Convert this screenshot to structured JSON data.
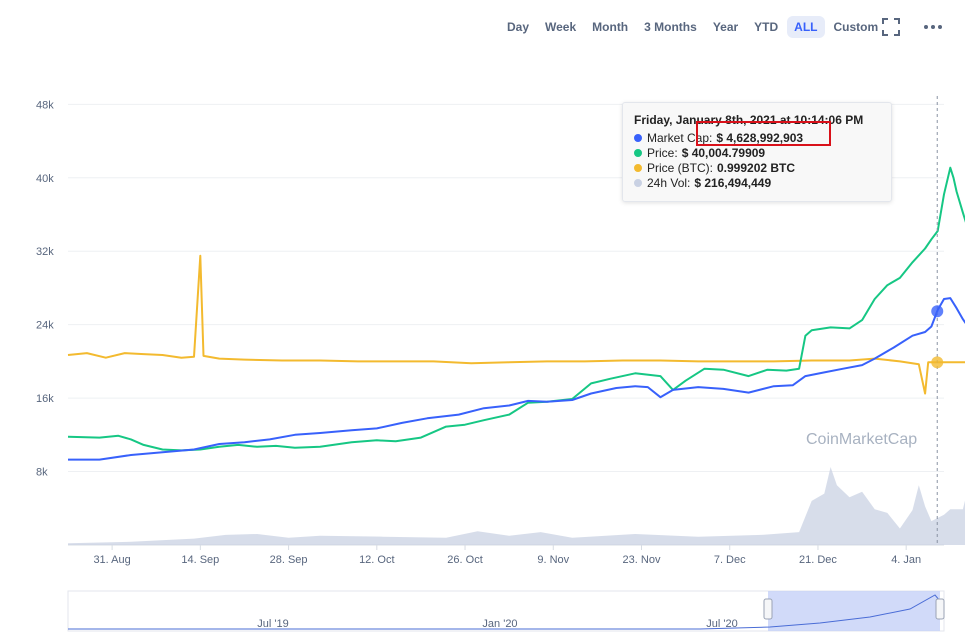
{
  "toolbar": {
    "ranges": [
      "Day",
      "Week",
      "Month",
      "3 Months",
      "Year",
      "YTD",
      "ALL",
      "Custom"
    ],
    "active": "ALL",
    "fullscreen_icon": "fullscreen-icon",
    "more_icon": "more-options-icon"
  },
  "tooltip": {
    "title": "Friday, January 8th, 2021 at 10:14:06 PM",
    "rows": [
      {
        "label": "Market Cap:",
        "value": "$ 4,628,992,903",
        "color": "#3861fb"
      },
      {
        "label": "Price:",
        "value": "$ 40,004.79909",
        "color": "#16c784"
      },
      {
        "label": "Price (BTC):",
        "value": "0.999202 BTC",
        "color": "#f3ba2f"
      },
      {
        "label": "24h Vol:",
        "value": "$ 216,494,449",
        "color": "#c9d1e3"
      }
    ]
  },
  "watermark": "CoinMarketCap",
  "chart_data": {
    "type": "line",
    "y_ticks": [
      "48k",
      "40k",
      "32k",
      "24k",
      "16k",
      "8k"
    ],
    "y_tick_values": [
      48000,
      40000,
      32000,
      24000,
      16000,
      8000
    ],
    "ylim": [
      0,
      50000
    ],
    "x_ticks": [
      "31. Aug",
      "14. Sep",
      "28. Sep",
      "12. Oct",
      "26. Oct",
      "9. Nov",
      "23. Nov",
      "7. Dec",
      "21. Dec",
      "4. Jan"
    ],
    "x_tick_days": [
      7,
      21,
      35,
      49,
      63,
      77,
      91,
      105,
      119,
      133
    ],
    "x_start": "2020-08-24",
    "x_end": "2021-01-10",
    "series": [
      {
        "name": "Price",
        "color": "#16c784",
        "points": [
          [
            0,
            11800
          ],
          [
            5,
            11700
          ],
          [
            8,
            11900
          ],
          [
            10,
            11500
          ],
          [
            12,
            10900
          ],
          [
            15,
            10400
          ],
          [
            18,
            10300
          ],
          [
            21,
            10400
          ],
          [
            24,
            10700
          ],
          [
            27,
            10900
          ],
          [
            30,
            10700
          ],
          [
            33,
            10800
          ],
          [
            36,
            10600
          ],
          [
            40,
            10700
          ],
          [
            45,
            11200
          ],
          [
            49,
            11400
          ],
          [
            52,
            11300
          ],
          [
            56,
            11700
          ],
          [
            60,
            12900
          ],
          [
            63,
            13100
          ],
          [
            66,
            13600
          ],
          [
            70,
            14200
          ],
          [
            73,
            15500
          ],
          [
            76,
            15600
          ],
          [
            80,
            15900
          ],
          [
            83,
            17600
          ],
          [
            86,
            18100
          ],
          [
            90,
            18700
          ],
          [
            94,
            18400
          ],
          [
            96,
            16900
          ],
          [
            98,
            17900
          ],
          [
            101,
            19200
          ],
          [
            104,
            19100
          ],
          [
            108,
            18400
          ],
          [
            111,
            19100
          ],
          [
            114,
            19000
          ],
          [
            116,
            19200
          ],
          [
            117,
            22800
          ],
          [
            118,
            23400
          ],
          [
            121,
            23700
          ],
          [
            124,
            23600
          ],
          [
            126,
            24500
          ],
          [
            128,
            26800
          ],
          [
            130,
            28300
          ],
          [
            132,
            29100
          ],
          [
            134,
            30800
          ],
          [
            136,
            32300
          ],
          [
            137,
            33300
          ],
          [
            138,
            34200
          ],
          [
            139,
            38200
          ],
          [
            140,
            41100
          ],
          [
            140.5,
            40000
          ],
          [
            141,
            38500
          ],
          [
            142,
            36200
          ],
          [
            143,
            34000
          ],
          [
            143.5,
            32300
          ],
          [
            144,
            33500
          ],
          [
            145,
            35800
          ],
          [
            146,
            38300
          ]
        ]
      },
      {
        "name": "Market Cap",
        "color": "#3861fb",
        "points": [
          [
            0,
            9300
          ],
          [
            5,
            9300
          ],
          [
            10,
            9800
          ],
          [
            15,
            10100
          ],
          [
            20,
            10400
          ],
          [
            24,
            11000
          ],
          [
            28,
            11200
          ],
          [
            32,
            11500
          ],
          [
            36,
            12000
          ],
          [
            40,
            12200
          ],
          [
            45,
            12500
          ],
          [
            49,
            12700
          ],
          [
            53,
            13300
          ],
          [
            57,
            13800
          ],
          [
            62,
            14200
          ],
          [
            66,
            14900
          ],
          [
            70,
            15200
          ],
          [
            73,
            15700
          ],
          [
            76,
            15600
          ],
          [
            80,
            15800
          ],
          [
            83,
            16500
          ],
          [
            87,
            17100
          ],
          [
            90,
            17300
          ],
          [
            92,
            17200
          ],
          [
            94,
            16100
          ],
          [
            96,
            16900
          ],
          [
            100,
            17200
          ],
          [
            104,
            17000
          ],
          [
            108,
            16600
          ],
          [
            112,
            17300
          ],
          [
            115,
            17400
          ],
          [
            117,
            18400
          ],
          [
            120,
            18800
          ],
          [
            123,
            19200
          ],
          [
            126,
            19600
          ],
          [
            128,
            20300
          ],
          [
            131,
            21500
          ],
          [
            134,
            22800
          ],
          [
            136,
            23200
          ],
          [
            137,
            23800
          ],
          [
            138,
            25600
          ],
          [
            139,
            26800
          ],
          [
            140,
            26900
          ],
          [
            141,
            25800
          ],
          [
            142,
            24600
          ],
          [
            143,
            23600
          ],
          [
            144,
            24900
          ],
          [
            145,
            25200
          ],
          [
            146,
            25900
          ]
        ]
      },
      {
        "name": "Price (BTC)",
        "color": "#f3ba2f",
        "points": [
          [
            0,
            20700
          ],
          [
            3,
            20900
          ],
          [
            6,
            20400
          ],
          [
            9,
            20900
          ],
          [
            12,
            20800
          ],
          [
            15,
            20700
          ],
          [
            18,
            20400
          ],
          [
            20,
            20500
          ],
          [
            21,
            31500
          ],
          [
            21.5,
            20600
          ],
          [
            24,
            20300
          ],
          [
            28,
            20200
          ],
          [
            34,
            20100
          ],
          [
            40,
            20100
          ],
          [
            46,
            20000
          ],
          [
            52,
            20000
          ],
          [
            58,
            20000
          ],
          [
            64,
            19800
          ],
          [
            70,
            19900
          ],
          [
            76,
            20000
          ],
          [
            82,
            20000
          ],
          [
            88,
            20100
          ],
          [
            94,
            20100
          ],
          [
            100,
            20000
          ],
          [
            106,
            20000
          ],
          [
            112,
            20000
          ],
          [
            118,
            20100
          ],
          [
            124,
            20100
          ],
          [
            128,
            20300
          ],
          [
            132,
            20000
          ],
          [
            135,
            19700
          ],
          [
            136,
            16500
          ],
          [
            136.5,
            19900
          ],
          [
            139,
            19900
          ],
          [
            142,
            19900
          ],
          [
            146,
            20000
          ]
        ]
      },
      {
        "name": "24h Vol",
        "color": "#c9d1e3",
        "points": [
          [
            0,
            200
          ],
          [
            10,
            350
          ],
          [
            20,
            700
          ],
          [
            25,
            1100
          ],
          [
            30,
            1200
          ],
          [
            35,
            800
          ],
          [
            40,
            1000
          ],
          [
            50,
            900
          ],
          [
            60,
            800
          ],
          [
            65,
            1500
          ],
          [
            70,
            1000
          ],
          [
            75,
            1400
          ],
          [
            80,
            800
          ],
          [
            90,
            1200
          ],
          [
            100,
            900
          ],
          [
            110,
            1100
          ],
          [
            116,
            1400
          ],
          [
            118,
            4800
          ],
          [
            120,
            5600
          ],
          [
            121,
            8500
          ],
          [
            122,
            6500
          ],
          [
            124,
            5200
          ],
          [
            126,
            5800
          ],
          [
            128,
            3900
          ],
          [
            130,
            3500
          ],
          [
            132,
            1800
          ],
          [
            134,
            3800
          ],
          [
            135,
            6500
          ],
          [
            136,
            4200
          ],
          [
            137,
            2600
          ],
          [
            139,
            3300
          ],
          [
            140,
            3900
          ],
          [
            142,
            3900
          ],
          [
            143,
            6700
          ],
          [
            144,
            3200
          ],
          [
            146,
            2400
          ]
        ]
      }
    ]
  },
  "navigator": {
    "labels": [
      "Jul '19",
      "Jan '20",
      "Jul '20"
    ],
    "handle_left_icon": "handle-left-icon",
    "handle_right_icon": "handle-right-icon"
  }
}
